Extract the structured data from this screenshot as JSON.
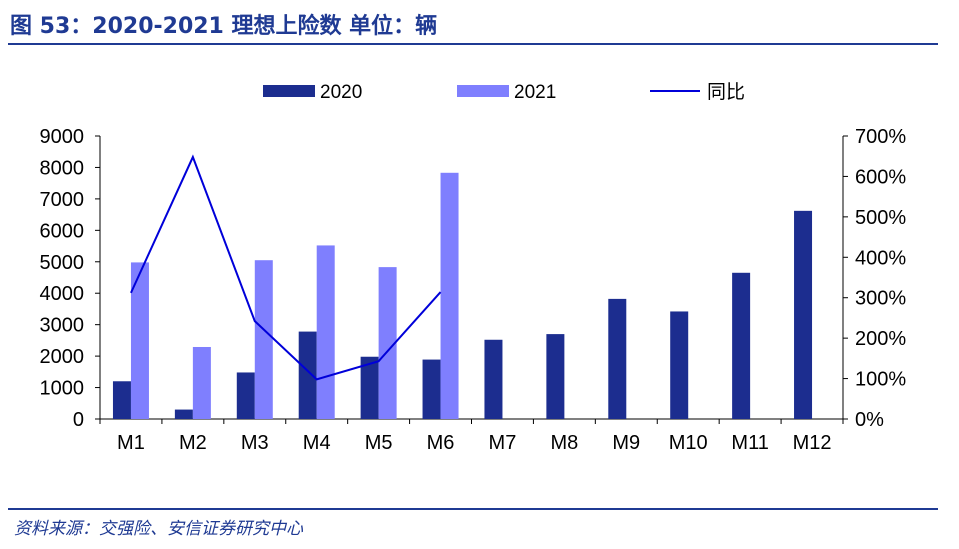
{
  "title": "图 53：2020-2021 理想上险数 单位：辆",
  "source": "资料来源：交强险、安信证券研究中心",
  "chart_data": {
    "type": "bar",
    "categories": [
      "M1",
      "M2",
      "M3",
      "M4",
      "M5",
      "M6",
      "M7",
      "M8",
      "M9",
      "M10",
      "M11",
      "M12"
    ],
    "series": [
      {
        "name": "2020",
        "kind": "bar",
        "axis": "left",
        "color": "#1c2d8f",
        "values": [
          1200,
          300,
          1480,
          2780,
          1980,
          1890,
          2520,
          2700,
          3820,
          3420,
          4650,
          6620
        ]
      },
      {
        "name": "2021",
        "kind": "bar",
        "axis": "left",
        "color": "#7f7ffe",
        "values": [
          4980,
          2290,
          5050,
          5520,
          4830,
          7830,
          null,
          null,
          null,
          null,
          null,
          null
        ]
      },
      {
        "name": "同比",
        "kind": "line",
        "axis": "right",
        "color": "#0000d9",
        "values": [
          3.12,
          6.48,
          2.42,
          0.98,
          1.43,
          3.14,
          null,
          null,
          null,
          null,
          null,
          null
        ]
      }
    ],
    "y_left": {
      "min": 0,
      "max": 9000,
      "ticks": [
        "0",
        "1000",
        "2000",
        "3000",
        "4000",
        "5000",
        "6000",
        "7000",
        "8000",
        "9000"
      ]
    },
    "y_right": {
      "min": 0,
      "max": 7,
      "ticks": [
        "0%",
        "100%",
        "200%",
        "300%",
        "400%",
        "500%",
        "600%",
        "700%"
      ]
    },
    "legend_position": "top",
    "grid": false
  }
}
